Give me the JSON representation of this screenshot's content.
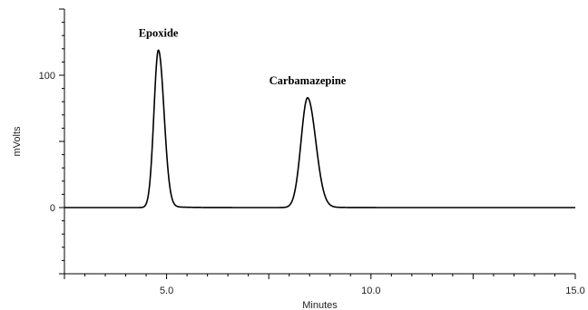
{
  "chart_data": {
    "type": "line",
    "title": "",
    "xlabel": "Minutes",
    "ylabel": "mVolts",
    "xlim": [
      2.5,
      15.0
    ],
    "ylim": [
      -50,
      150
    ],
    "x_ticks": [
      {
        "value": 5.0,
        "label": "5.0"
      },
      {
        "value": 10.0,
        "label": "10.0"
      },
      {
        "value": 15.0,
        "label": "15.0"
      }
    ],
    "y_ticks": [
      {
        "value": 0,
        "label": "0"
      },
      {
        "value": 100,
        "label": "100"
      }
    ],
    "grid": false,
    "series": [
      {
        "color": "#000000",
        "baseline": 0,
        "peaks": [
          {
            "label": "Epoxide",
            "retention_time": 4.8,
            "height": 119
          },
          {
            "label": "Carbamazepine",
            "retention_time": 8.45,
            "height": 83
          }
        ]
      }
    ],
    "annotations": [
      {
        "text": "Epoxide",
        "x": 4.8,
        "y": 129
      },
      {
        "text": "Carbamazepine",
        "x": 8.45,
        "y": 93
      }
    ]
  }
}
